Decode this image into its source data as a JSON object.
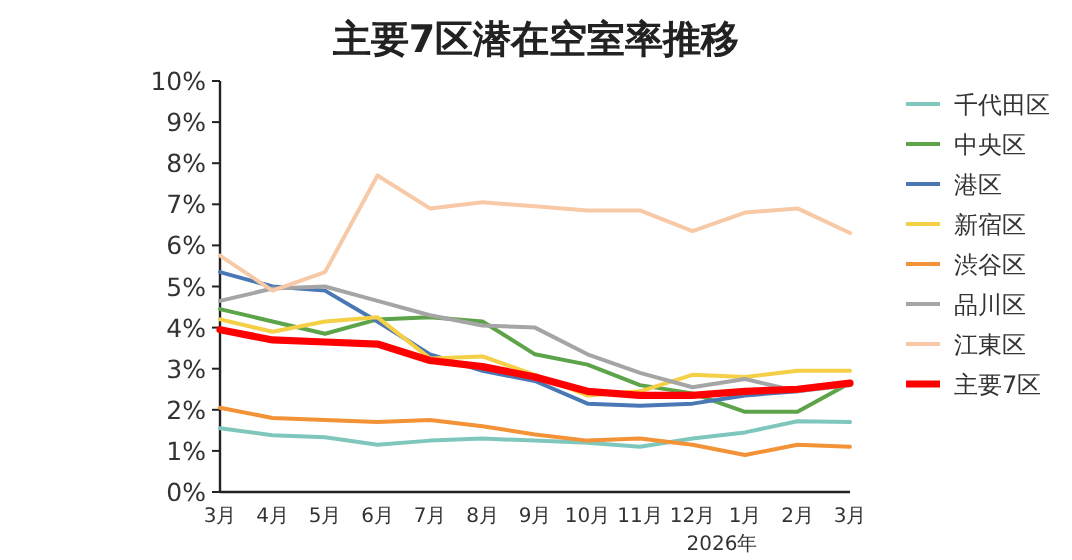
{
  "chart_data": {
    "type": "line",
    "title": "主要7区潜在空室率推移",
    "categories": [
      "3月",
      "4月",
      "5月",
      "6月",
      "7月",
      "8月",
      "9月",
      "10月",
      "11月",
      "12月",
      "1月",
      "2月",
      "3月"
    ],
    "ylim": [
      0,
      10
    ],
    "yticks": [
      {
        "value": 0,
        "label": "0%"
      },
      {
        "value": 1,
        "label": "1%"
      },
      {
        "value": 2,
        "label": "2%"
      },
      {
        "value": 3,
        "label": "3%"
      },
      {
        "value": 4,
        "label": "4%"
      },
      {
        "value": 5,
        "label": "5%"
      },
      {
        "value": 6,
        "label": "6%"
      },
      {
        "value": 7,
        "label": "7%"
      },
      {
        "value": 8,
        "label": "8%"
      },
      {
        "value": 9,
        "label": "9%"
      },
      {
        "value": 10,
        "label": "10%"
      }
    ],
    "grid": false,
    "legend": "right",
    "marker": "none",
    "line_style": "solid",
    "annotations": [
      "2026年"
    ],
    "series": [
      {
        "name": "千代田区",
        "color": "#7fc7bd",
        "values": [
          1.55,
          1.38,
          1.33,
          1.15,
          1.25,
          1.3,
          1.25,
          1.2,
          1.1,
          1.3,
          1.45,
          1.72,
          1.7
        ]
      },
      {
        "name": "中央区",
        "color": "#5ca34a",
        "values": [
          4.45,
          4.15,
          3.85,
          4.2,
          4.25,
          4.15,
          3.35,
          3.1,
          2.6,
          2.4,
          1.95,
          1.95,
          2.65
        ]
      },
      {
        "name": "港区",
        "color": "#4a78b5",
        "values": [
          5.35,
          5.0,
          4.9,
          4.15,
          3.35,
          2.95,
          2.7,
          2.15,
          2.1,
          2.15,
          2.35,
          2.45,
          2.65
        ]
      },
      {
        "name": "新宿区",
        "color": "#f5cf45",
        "values": [
          4.2,
          3.9,
          4.15,
          4.25,
          3.25,
          3.3,
          2.85,
          2.35,
          2.45,
          2.85,
          2.8,
          2.95,
          2.95
        ]
      },
      {
        "name": "渋谷区",
        "color": "#f39237",
        "values": [
          2.05,
          1.8,
          1.75,
          1.7,
          1.75,
          1.6,
          1.4,
          1.25,
          1.3,
          1.15,
          0.9,
          1.15,
          1.1
        ]
      },
      {
        "name": "品川区",
        "color": "#a5a5a5",
        "values": [
          4.65,
          4.95,
          5.0,
          4.65,
          4.3,
          4.05,
          4.0,
          3.35,
          2.9,
          2.55,
          2.75,
          2.45,
          2.6
        ]
      },
      {
        "name": "江東区",
        "color": "#f8c9a6",
        "values": [
          5.75,
          4.9,
          5.35,
          7.7,
          6.9,
          7.05,
          6.95,
          6.85,
          6.85,
          6.35,
          6.8,
          6.9,
          6.3
        ]
      },
      {
        "name": "主要7区",
        "color": "#ff0000",
        "values": [
          3.95,
          3.7,
          3.65,
          3.6,
          3.2,
          3.05,
          2.8,
          2.45,
          2.35,
          2.35,
          2.45,
          2.5,
          2.65
        ]
      }
    ]
  }
}
